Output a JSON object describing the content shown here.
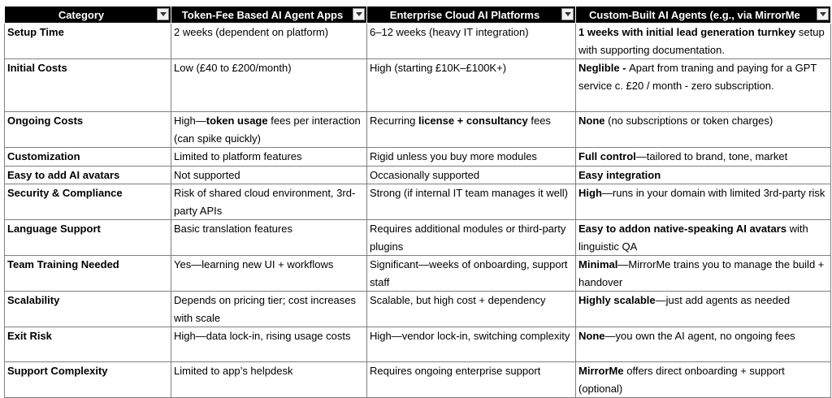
{
  "headers": [
    "Category",
    "Token-Fee Based AI Agent Apps",
    "Enterprise Cloud AI Platforms",
    "Custom-Built AI Agents (e.g., via MirrorMe"
  ],
  "rows": [
    {
      "category": "Setup Time",
      "token": [
        {
          "t": "2 weeks (dependent on platform)"
        }
      ],
      "enterprise": [
        {
          "t": "6–12 weeks (heavy IT integration)"
        }
      ],
      "custom": [
        {
          "t": "1 weeks with initial lead generation turnkey",
          "b": true
        },
        {
          "t": " setup with supporting documentation."
        }
      ]
    },
    {
      "category": "Initial Costs",
      "token": [
        {
          "t": "Low (£40 to £200/month)"
        }
      ],
      "enterprise": [
        {
          "t": "High (starting £10K–£100K+)"
        }
      ],
      "custom": [
        {
          "t": "Neglible - ",
          "b": true
        },
        {
          "t": "Apart from traning and paying for a GPT service c. £20 / month - zero subscription."
        }
      ]
    },
    {
      "category": "Ongoing Costs",
      "token": [
        {
          "t": "High—"
        },
        {
          "t": "token usage",
          "b": true
        },
        {
          "t": " fees per interaction (can spike quickly)"
        }
      ],
      "enterprise": [
        {
          "t": "Recurring "
        },
        {
          "t": "license + consultancy",
          "b": true
        },
        {
          "t": " fees"
        }
      ],
      "custom": [
        {
          "t": "None",
          "b": true
        },
        {
          "t": " (no subscriptions or token charges)"
        }
      ]
    },
    {
      "category": "Customization",
      "token": [
        {
          "t": "Limited to platform features"
        }
      ],
      "enterprise": [
        {
          "t": "Rigid unless you buy more modules"
        }
      ],
      "custom": [
        {
          "t": "Full control",
          "b": true
        },
        {
          "t": "—tailored to brand, tone, market"
        }
      ]
    },
    {
      "category": "Easy to add AI avatars",
      "token": [
        {
          "t": "Not supported"
        }
      ],
      "enterprise": [
        {
          "t": "Occasionally supported"
        }
      ],
      "custom": [
        {
          "t": "Easy integration",
          "b": true
        }
      ]
    },
    {
      "category": "Security & Compliance",
      "token": [
        {
          "t": "Risk of shared cloud environment, 3rd-party APIs"
        }
      ],
      "enterprise": [
        {
          "t": "Strong (if internal IT team manages it well)"
        }
      ],
      "custom": [
        {
          "t": "High",
          "b": true
        },
        {
          "t": "—runs in your domain with limited 3rd-party risk"
        }
      ]
    },
    {
      "category": "Language Support",
      "token": [
        {
          "t": "Basic translation features"
        }
      ],
      "enterprise": [
        {
          "t": "Requires additional modules or third-party plugins"
        }
      ],
      "custom": [
        {
          "t": "Easy to addon native-speaking AI avatars",
          "b": true
        },
        {
          "t": " with linguistic QA"
        }
      ]
    },
    {
      "category": "Team Training Needed",
      "token": [
        {
          "t": "Yes—learning new UI + workflows"
        }
      ],
      "enterprise": [
        {
          "t": "Significant—weeks of onboarding, support staff"
        }
      ],
      "custom": [
        {
          "t": "Minimal",
          "b": true
        },
        {
          "t": "—MirrorMe trains you to manage the build + handover"
        }
      ]
    },
    {
      "category": "Scalability",
      "token": [
        {
          "t": "Depends on pricing tier; cost increases with scale"
        }
      ],
      "enterprise": [
        {
          "t": "Scalable, but high cost + dependency"
        }
      ],
      "custom": [
        {
          "t": "Highly scalable",
          "b": true
        },
        {
          "t": "—just add agents as needed"
        }
      ]
    },
    {
      "category": "Exit Risk",
      "token": [
        {
          "t": "High—data lock-in, rising usage costs"
        }
      ],
      "enterprise": [
        {
          "t": "High—vendor lock-in, switching complexity"
        }
      ],
      "custom": [
        {
          "t": "None",
          "b": true
        },
        {
          "t": "—you own the AI agent, no ongoing fees"
        }
      ]
    },
    {
      "category": "Support Complexity",
      "token": [
        {
          "t": "Limited to app’s helpdesk"
        }
      ],
      "enterprise": [
        {
          "t": "Requires ongoing enterprise support"
        }
      ],
      "custom": [
        {
          "t": "MirrorMe",
          "b": true
        },
        {
          "t": " offers direct onboarding + support (optional)"
        }
      ]
    }
  ]
}
